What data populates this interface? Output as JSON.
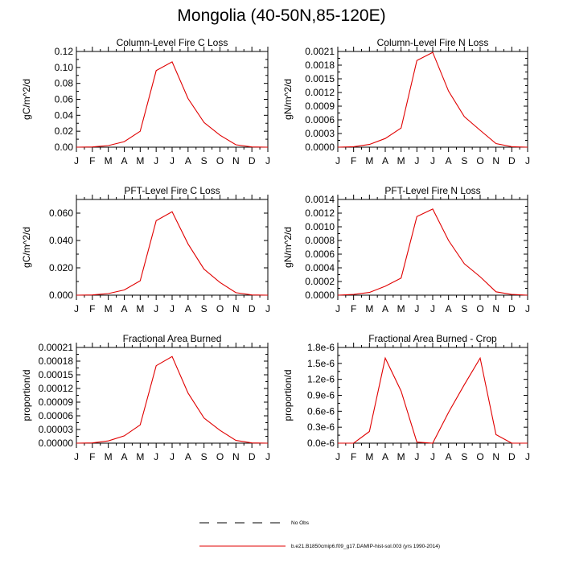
{
  "title": "Mongolia (40-50N,85-120E)",
  "colors": {
    "model": "#e00000",
    "obs": "#000000",
    "axis": "#000000"
  },
  "legend": {
    "obs_label": "No Obs",
    "model_label": "b.e21.B1850cmip6.f09_g17.DAMIP-hist-sol.003 (yrs 1990-2014)"
  },
  "months": [
    "J",
    "F",
    "M",
    "A",
    "M",
    "J",
    "J",
    "A",
    "S",
    "O",
    "N",
    "D",
    "J"
  ],
  "chart_data": [
    {
      "type": "line",
      "title": "Column-Level Fire C Loss",
      "ylabel": "gC/m^2/d",
      "ylim": [
        0,
        0.12
      ],
      "yticks": [
        "0.00",
        "0.02",
        "0.04",
        "0.06",
        "0.08",
        "0.10",
        "0.12"
      ],
      "series": [
        {
          "values": [
            0.0,
            0.0003,
            0.002,
            0.007,
            0.02,
            0.096,
            0.107,
            0.061,
            0.031,
            0.015,
            0.003,
            0.0003,
            0.0
          ]
        }
      ]
    },
    {
      "type": "line",
      "title": "Column-Level Fire N Loss",
      "ylabel": "gN/m^2/d",
      "ylim": [
        0,
        0.0021
      ],
      "yticks": [
        "0.0000",
        "0.0003",
        "0.0006",
        "0.0009",
        "0.0012",
        "0.0015",
        "0.0018",
        "0.0021"
      ],
      "series": [
        {
          "values": [
            0.0,
            1e-05,
            6e-05,
            0.00019,
            0.00042,
            0.0019,
            0.00208,
            0.00123,
            0.00067,
            0.00037,
            8e-05,
            1e-05,
            0.0
          ]
        }
      ]
    },
    {
      "type": "line",
      "title": "PFT-Level Fire C Loss",
      "ylabel": "gC/m^2/d",
      "ylim": [
        0,
        0.07
      ],
      "yticks": [
        "0.000",
        "0.020",
        "0.040",
        "0.060"
      ],
      "series": [
        {
          "values": [
            0.0,
            0.0002,
            0.0012,
            0.0038,
            0.0105,
            0.0545,
            0.061,
            0.0375,
            0.019,
            0.0093,
            0.0018,
            0.0002,
            0.0
          ]
        }
      ]
    },
    {
      "type": "line",
      "title": "PFT-Level Fire N Loss",
      "ylabel": "gN/m^2/d",
      "ylim": [
        0,
        0.0014
      ],
      "yticks": [
        "0.0000",
        "0.0002",
        "0.0004",
        "0.0006",
        "0.0008",
        "0.0010",
        "0.0012",
        "0.0014"
      ],
      "series": [
        {
          "values": [
            0.0,
            1e-05,
            4e-05,
            0.00013,
            0.00025,
            0.00115,
            0.00126,
            0.0008,
            0.00046,
            0.00027,
            5e-05,
            1e-05,
            0.0
          ]
        }
      ]
    },
    {
      "type": "line",
      "title": "Fractional Area Burned",
      "ylabel": "proportion/d",
      "ylim": [
        0,
        0.00021
      ],
      "yticks": [
        "0.00000",
        "0.00003",
        "0.00006",
        "0.00009",
        "0.00012",
        "0.00015",
        "0.00018",
        "0.00021"
      ],
      "series": [
        {
          "values": [
            0.0,
            5e-07,
            5e-06,
            1.6e-05,
            4e-05,
            0.00017,
            0.00019,
            0.00011,
            5.5e-05,
            2.8e-05,
            6e-06,
            5e-07,
            0.0
          ]
        }
      ]
    },
    {
      "type": "line",
      "title": "Fractional Area Burned - Crop",
      "ylabel": "proportion/d",
      "ylim": [
        0,
        1.8e-06
      ],
      "yticks": [
        "0.0e-6",
        "0.3e-6",
        "0.6e-6",
        "0.9e-6",
        "1.2e-6",
        "1.5e-6",
        "1.8e-6"
      ],
      "series": [
        {
          "values": [
            0.0,
            0.0,
            2.2e-07,
            1.6e-06,
            9.8e-07,
            2e-08,
            0.0,
            5.8e-07,
            1.1e-06,
            1.6e-06,
            1.6e-07,
            0.0,
            0.0
          ]
        }
      ]
    }
  ]
}
